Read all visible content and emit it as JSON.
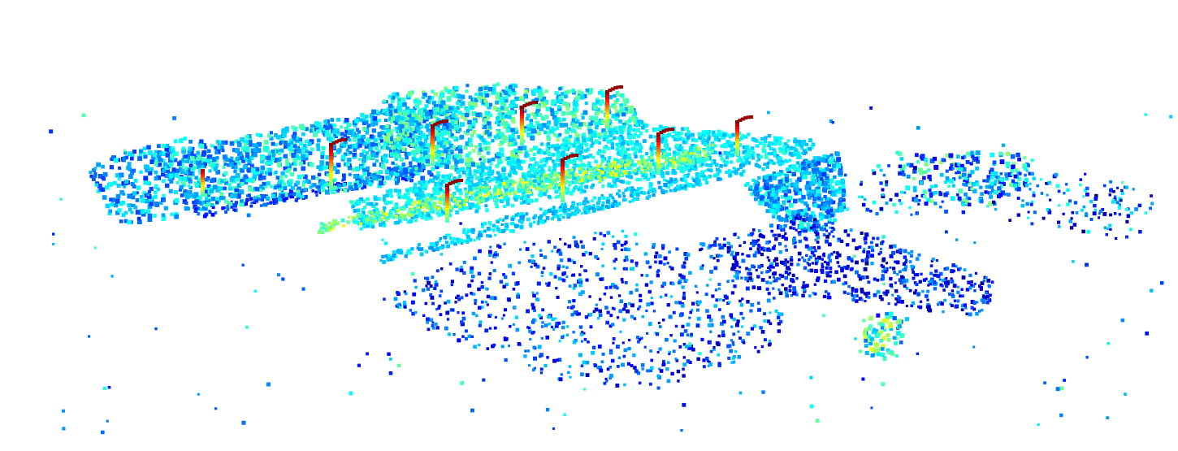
{
  "scene": {
    "kind": "lidar-point-cloud",
    "background": "#ffffff",
    "colormap": [
      "#00007f",
      "#0000ff",
      "#0080ff",
      "#00ffff",
      "#80ff80",
      "#ffff00",
      "#ff8000",
      "#ff0000",
      "#7f0000"
    ],
    "regions": [
      {
        "name": "left-shoulder-dots",
        "level": 0.28
      },
      {
        "name": "left-guardrail-strip",
        "level": 0.3
      },
      {
        "name": "left-roadside-vegetation",
        "level": 0.32
      },
      {
        "name": "far-vegetation",
        "level": 0.34
      },
      {
        "name": "road-surface",
        "level": 0.36
      },
      {
        "name": "near-lane-edge",
        "level": 0.5
      },
      {
        "name": "near-road-strip",
        "level": 0.33
      },
      {
        "name": "right-junction-ground",
        "level": 0.3
      },
      {
        "name": "right-bushes",
        "level": 0.32
      },
      {
        "name": "right-scatter",
        "level": 0.22
      },
      {
        "name": "foreground-terrain",
        "level": 0.2
      },
      {
        "name": "right-foreground-terrain",
        "level": 0.2
      },
      {
        "name": "small-tree",
        "level": 0.42
      },
      {
        "name": "stray-points",
        "level": 0.3
      }
    ],
    "poles": [
      {
        "name": "pole-1",
        "level": 0.95
      },
      {
        "name": "pole-2",
        "level": 0.95
      },
      {
        "name": "pole-3",
        "level": 0.95
      },
      {
        "name": "pole-4",
        "level": 0.95
      },
      {
        "name": "pole-5",
        "level": 0.95
      },
      {
        "name": "pole-6",
        "level": 0.95
      },
      {
        "name": "pole-7",
        "level": 0.95
      },
      {
        "name": "pole-8",
        "level": 0.95
      },
      {
        "name": "pole-9",
        "level": 0.95
      }
    ]
  }
}
